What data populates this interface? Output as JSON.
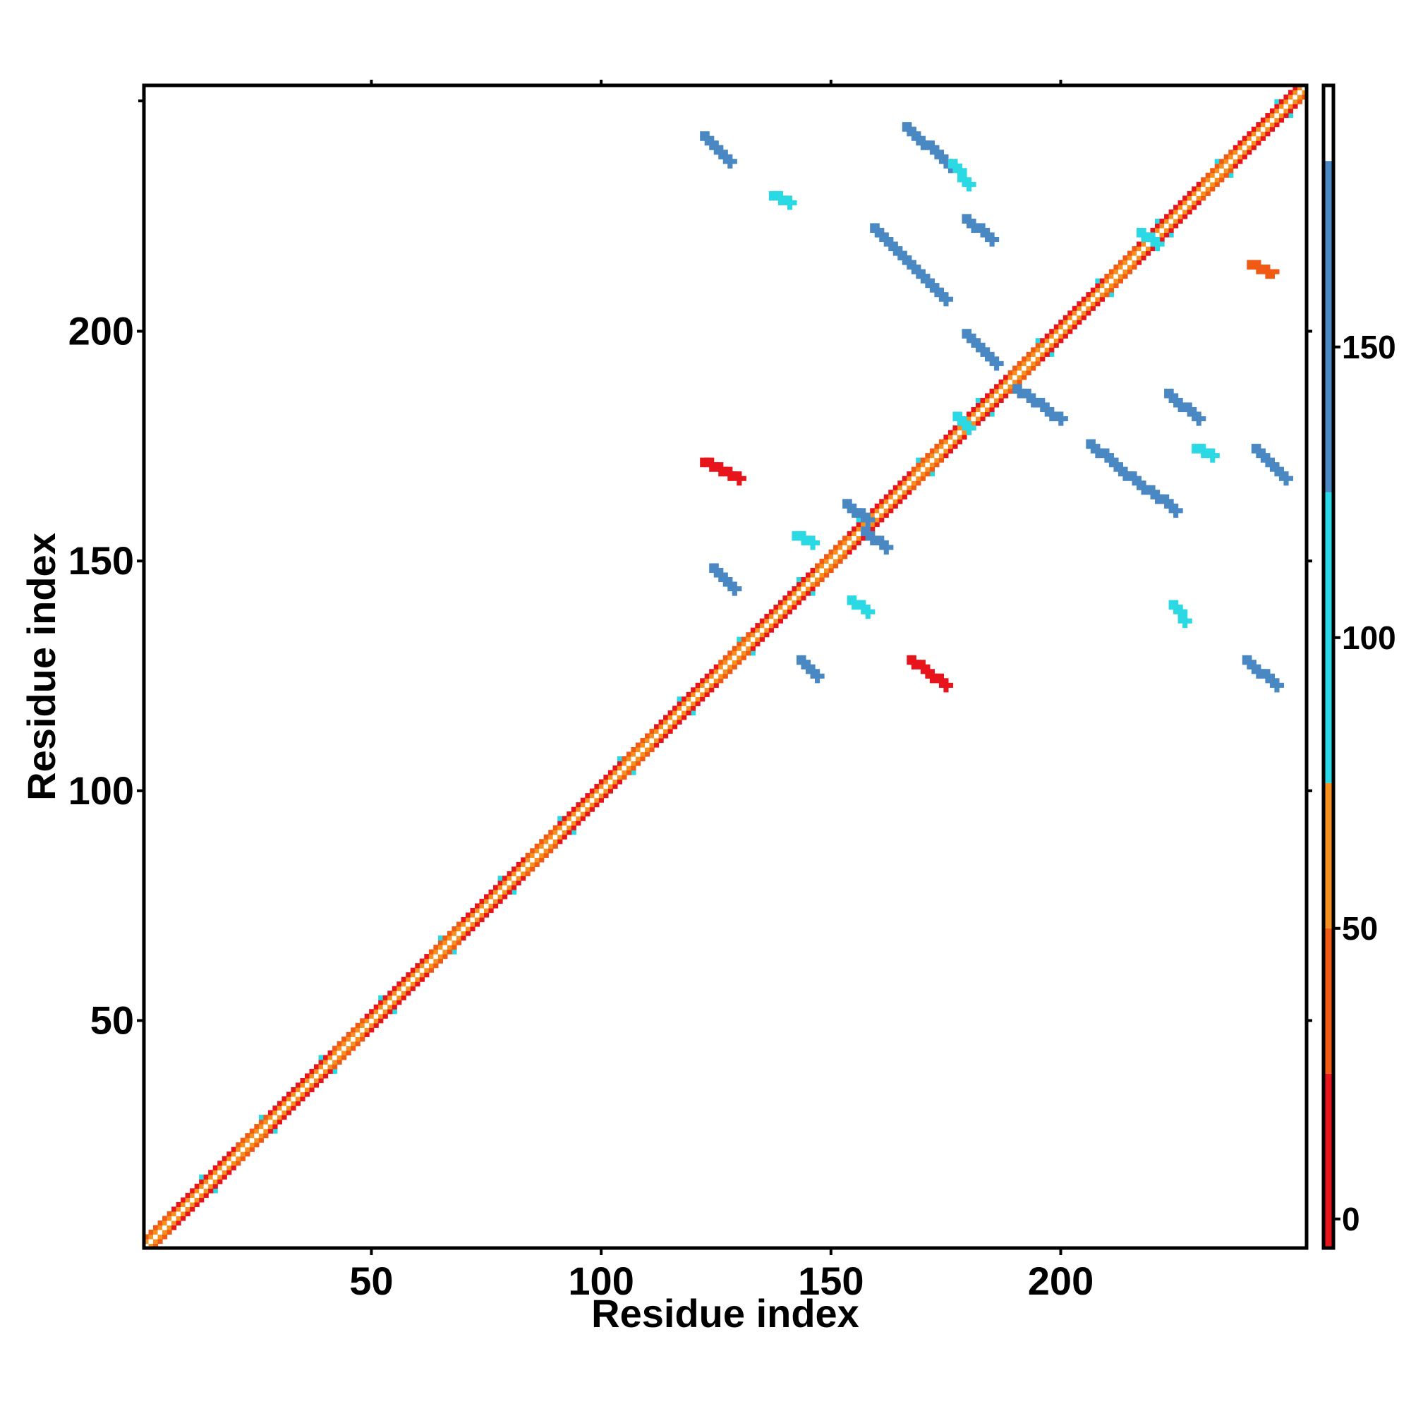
{
  "chart_data": {
    "type": "heatmap",
    "title": "",
    "xlabel": "Residue index",
    "ylabel": "Residue index",
    "xlim": [
      1,
      253
    ],
    "ylim": [
      1,
      253
    ],
    "x_ticks": [
      "50",
      "100",
      "150",
      "200"
    ],
    "y_ticks": [
      "50",
      "100",
      "150",
      "200"
    ],
    "colorbar": {
      "range": [
        -5,
        195
      ],
      "ticks": [
        "0",
        "50",
        "100",
        "150"
      ],
      "bands": [
        {
          "from": -5,
          "to": 25,
          "color": "#e8141c"
        },
        {
          "from": 25,
          "to": 50,
          "color": "#f05a14"
        },
        {
          "from": 50,
          "to": 75,
          "color": "#f6901e"
        },
        {
          "from": 75,
          "to": 125,
          "color": "#2ad9e4"
        },
        {
          "from": 125,
          "to": 182,
          "color": "#4a88c4"
        },
        {
          "from": 182,
          "to": 195,
          "color": "#ffffff"
        }
      ]
    },
    "contacts": {
      "diagonal_range": [
        1,
        253
      ],
      "strips": [
        {
          "x": [
            122,
            128
          ],
          "y": [
            243,
            237
          ],
          "value": 150
        },
        {
          "x": [
            166,
            176
          ],
          "y": [
            245,
            236
          ],
          "value": 140
        },
        {
          "x": [
            179,
            185
          ],
          "y": [
            225,
            220
          ],
          "value": 150
        },
        {
          "x": [
            159,
            175
          ],
          "y": [
            223,
            207
          ],
          "value": 150
        },
        {
          "x": [
            179,
            186
          ],
          "y": [
            200,
            193
          ],
          "value": 150
        },
        {
          "x": [
            190,
            200
          ],
          "y": [
            188,
            181
          ],
          "value": 150
        },
        {
          "x": [
            206,
            218
          ],
          "y": [
            176,
            166
          ],
          "value": 150
        },
        {
          "x": [
            223,
            230
          ],
          "y": [
            187,
            181
          ],
          "value": 150
        },
        {
          "x": [
            242,
            249
          ],
          "y": [
            175,
            168
          ],
          "value": 150
        },
        {
          "x": [
            219,
            225
          ],
          "y": [
            166,
            161
          ],
          "value": 150
        },
        {
          "x": [
            153,
            158
          ],
          "y": [
            163,
            159
          ],
          "value": 150
        },
        {
          "x": [
            157,
            162
          ],
          "y": [
            157,
            153
          ],
          "value": 150
        },
        {
          "x": [
            124,
            129
          ],
          "y": [
            149,
            144
          ],
          "value": 150
        },
        {
          "x": [
            143,
            147
          ],
          "y": [
            129,
            125
          ],
          "value": 140
        },
        {
          "x": [
            240,
            247
          ],
          "y": [
            129,
            123
          ],
          "value": 150
        },
        {
          "x": [
            224,
            227
          ],
          "y": [
            141,
            137
          ],
          "value": 100
        },
        {
          "x": [
            137,
            141
          ],
          "y": [
            230,
            228
          ],
          "value": 110
        },
        {
          "x": [
            176,
            180
          ],
          "y": [
            237,
            232
          ],
          "value": 100
        },
        {
          "x": [
            142,
            146
          ],
          "y": [
            156,
            154
          ],
          "value": 100
        },
        {
          "x": [
            154,
            158
          ],
          "y": [
            142,
            139
          ],
          "value": 100
        },
        {
          "x": [
            177,
            180
          ],
          "y": [
            182,
            179
          ],
          "value": 100
        },
        {
          "x": [
            217,
            221
          ],
          "y": [
            222,
            219
          ],
          "value": 100
        },
        {
          "x": [
            229,
            233
          ],
          "y": [
            175,
            173
          ],
          "value": 100
        },
        {
          "x": [
            122,
            130
          ],
          "y": [
            172,
            168
          ],
          "value": 10
        },
        {
          "x": [
            167,
            175
          ],
          "y": [
            129,
            123
          ],
          "value": 10
        },
        {
          "x": [
            241,
            246
          ],
          "y": [
            215,
            213
          ],
          "value": 40
        }
      ]
    }
  }
}
